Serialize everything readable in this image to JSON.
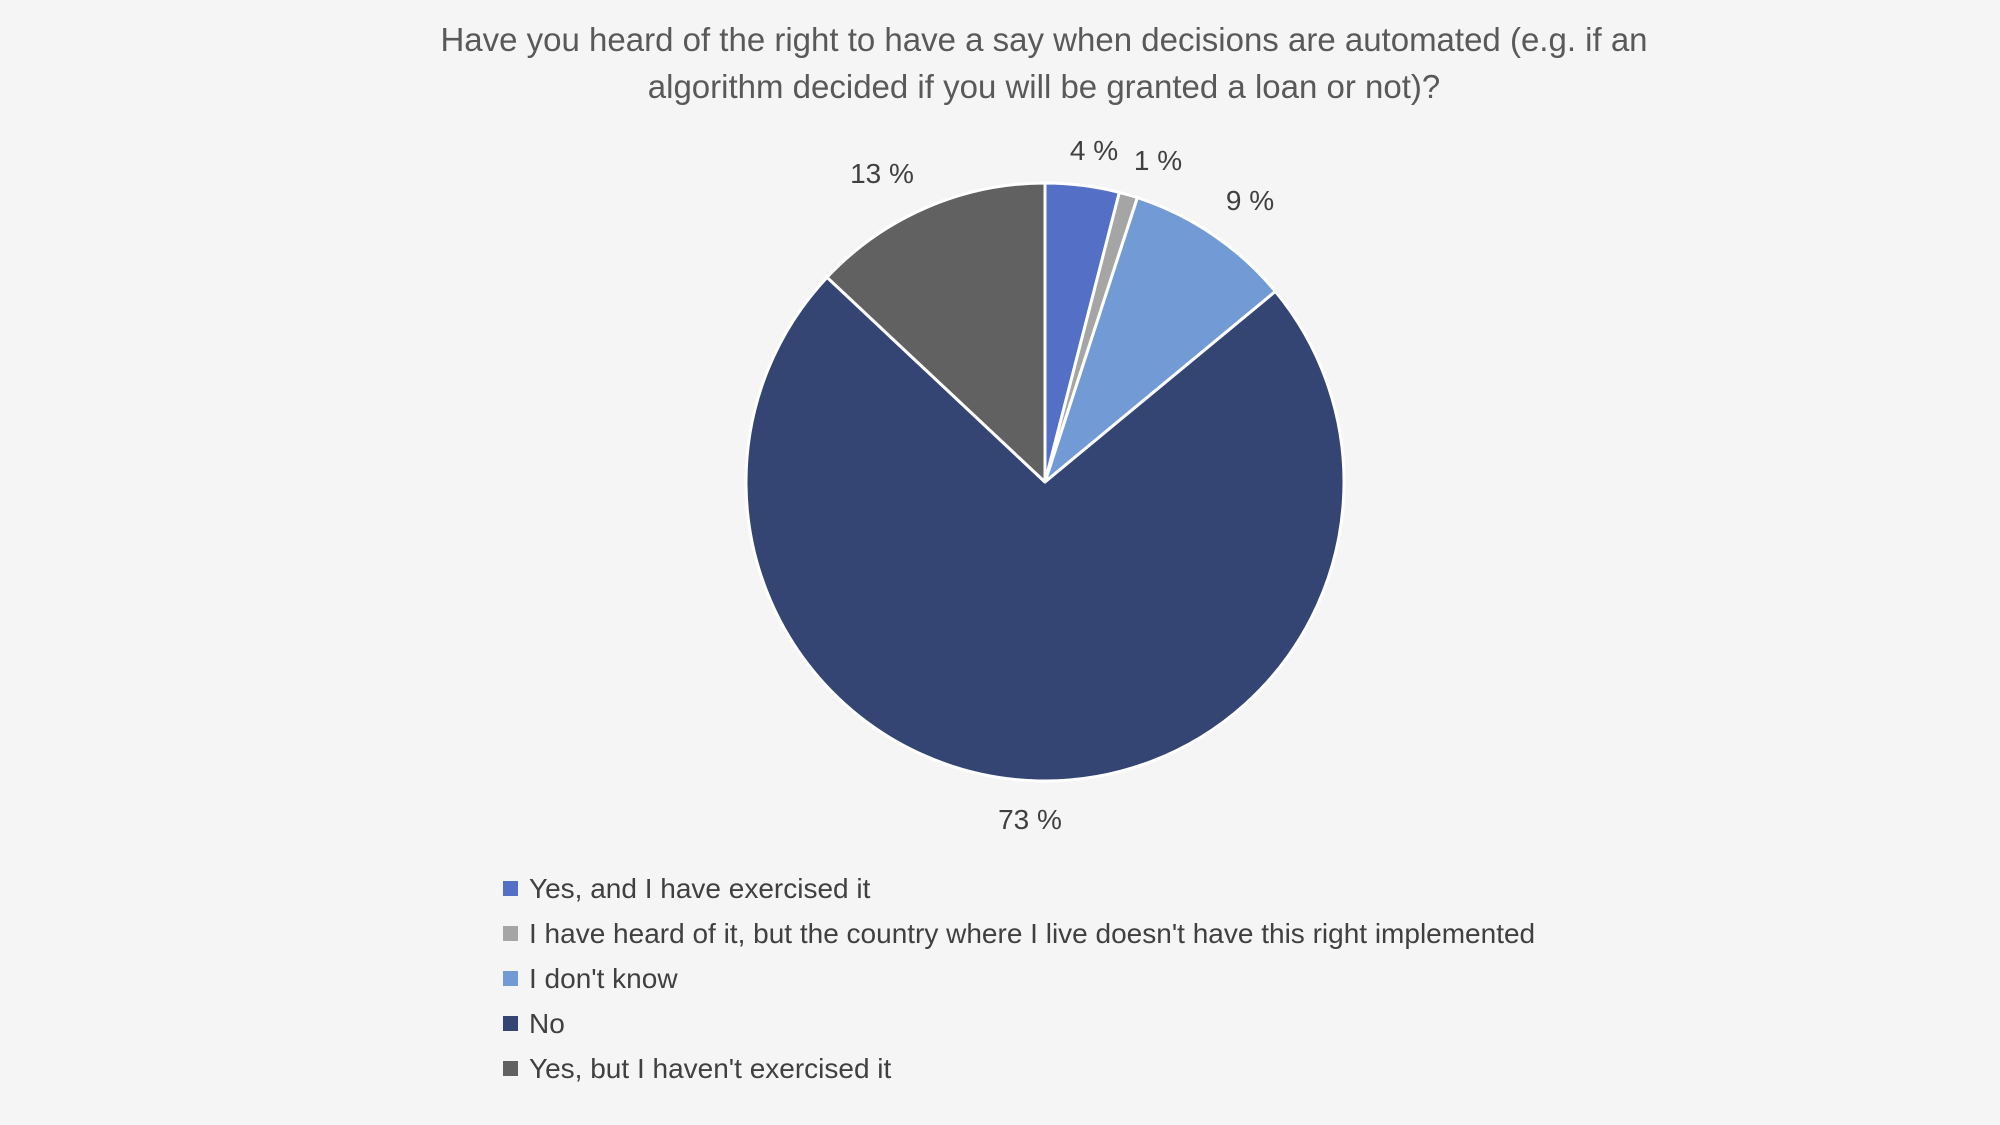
{
  "chart_data": {
    "type": "pie",
    "title_lines": [
      "Have you heard of the right to have a say when decisions are automated (e.g. if an",
      "algorithm decided if you will be granted a loan or not)?"
    ],
    "slices": [
      {
        "label": "Yes, and I have exercised it",
        "value": 4,
        "display": "4 %",
        "color": "#5470c6"
      },
      {
        "label": "I have heard of it, but the country where I live doesn't have this right implemented",
        "value": 1,
        "display": "1 %",
        "color": "#a5a5a5"
      },
      {
        "label": "I don't know",
        "value": 9,
        "display": "9 %",
        "color": "#729bd6"
      },
      {
        "label": "No",
        "value": 73,
        "display": "73 %",
        "color": "#344573"
      },
      {
        "label": "Yes, but I haven't exercised it",
        "value": 13,
        "display": "13 %",
        "color": "#616161"
      }
    ],
    "start_angle": "12 o'clock",
    "direction": "clockwise",
    "legend_position": "bottom",
    "slice_border_color": "#ffffff"
  }
}
